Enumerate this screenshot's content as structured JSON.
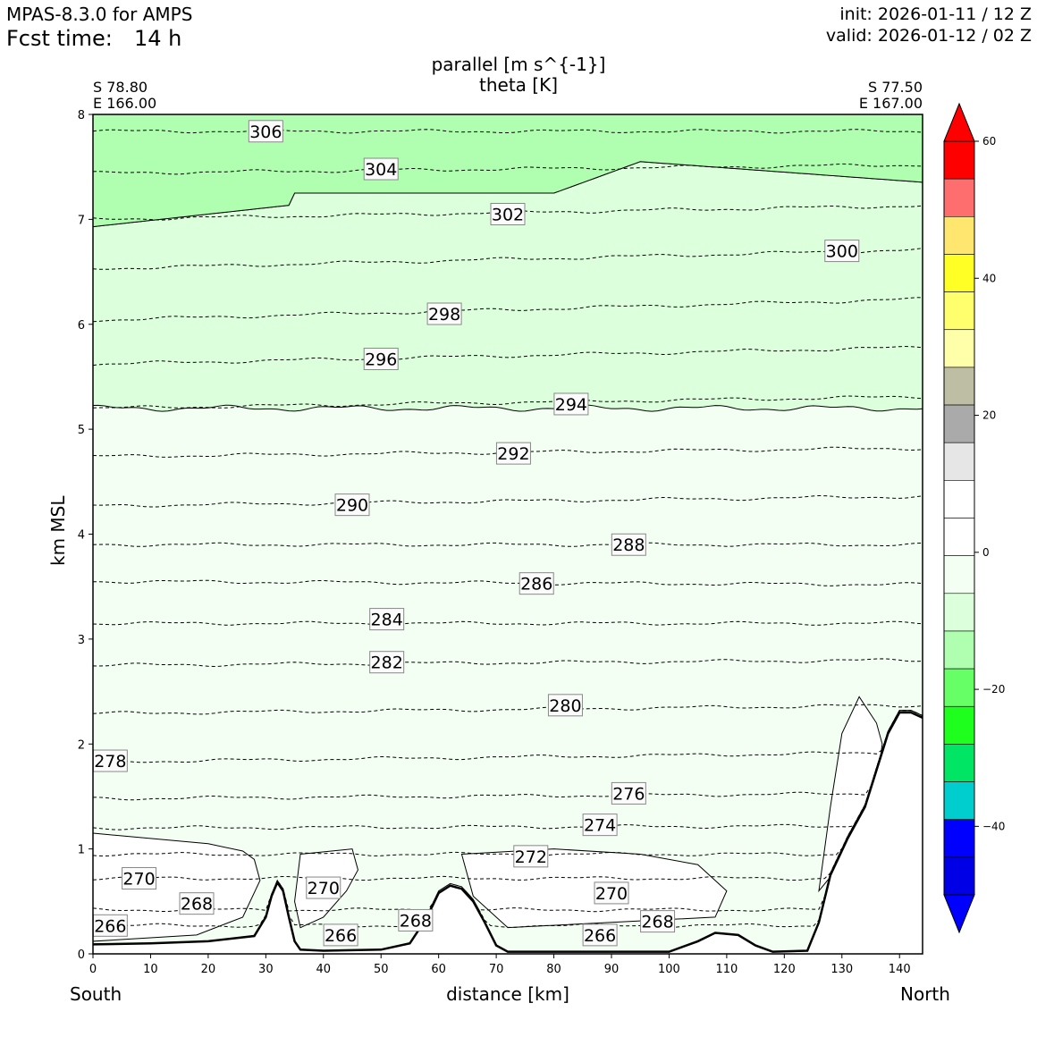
{
  "header": {
    "model": "MPAS-8.3.0 for AMPS",
    "fcst_label": "Fcst time:",
    "fcst_value": "14 h",
    "init": "init: 2026-01-11 / 12 Z",
    "valid": "valid: 2026-01-12 / 02 Z"
  },
  "chart_data": {
    "type": "contour",
    "title_line1": "parallel [m s^{-1}]",
    "title_line2": "theta [K]",
    "xlabel": "distance [km]",
    "ylabel": "km MSL",
    "xlim": [
      0,
      144
    ],
    "ylim": [
      0,
      8
    ],
    "x_ticks": [
      0,
      10,
      20,
      30,
      40,
      50,
      60,
      70,
      80,
      90,
      100,
      110,
      120,
      130,
      140
    ],
    "y_ticks": [
      0,
      1,
      2,
      3,
      4,
      5,
      6,
      7,
      8
    ],
    "left_end": {
      "lat": "S 78.80",
      "lon": "E 166.00",
      "side": "South"
    },
    "right_end": {
      "lat": "S 77.50",
      "lon": "E 167.00",
      "side": "North"
    },
    "colorbar": {
      "range": [
        -50,
        60
      ],
      "step": 5,
      "ticks": [
        60,
        40,
        20,
        0,
        -20,
        -40
      ],
      "tick_labels": [
        "60",
        "40",
        "20",
        "0",
        "−20",
        "−40"
      ],
      "colors_top_to_bottom": [
        "#ff0000",
        "#ff6e6e",
        "#ffe66e",
        "#ffff26",
        "#ffff6e",
        "#ffffaa",
        "#bebea5",
        "#aaaaaa",
        "#e6e6e6",
        "#ffffff",
        "#ffffff",
        "#f2fff2",
        "#dcffdc",
        "#b0ffb0",
        "#66ff66",
        "#1eff1e",
        "#00e664",
        "#00cdcd",
        "#0000ff",
        "#0000e6"
      ],
      "extend_max_color": "#ff0000",
      "extend_min_color": "#0000ff"
    },
    "filled_regions": [
      {
        "range": "-10 to -15",
        "color": "#b0ffb0",
        "extent": "above ~7.0-7.5 km"
      },
      {
        "range": "-5 to -10",
        "color": "#dcffdc",
        "extent": "~5.2 to ~7.3 km"
      },
      {
        "range": "0 to -5",
        "color": "#f2fff2",
        "extent": "surface to ~5.2 km"
      }
    ],
    "theta_contours": [
      {
        "value": 306,
        "label": "306",
        "y_left": 7.84,
        "y_right": 7.84,
        "label_x": 30,
        "label_y": 7.84
      },
      {
        "value": 304,
        "label": "304",
        "y_left": 7.44,
        "y_right": 7.52,
        "label_x": 50,
        "label_y": 7.48
      },
      {
        "value": 302,
        "label": "302",
        "y_left": 7.0,
        "y_right": 7.13,
        "label_x": 72,
        "label_y": 7.05
      },
      {
        "value": 300,
        "label": "300",
        "y_left": 6.53,
        "y_right": 6.71,
        "label_x": 130,
        "label_y": 6.7
      },
      {
        "value": 298,
        "label": "298",
        "y_left": 6.04,
        "y_right": 6.24,
        "label_x": 61,
        "label_y": 6.1
      },
      {
        "value": 296,
        "label": "296",
        "y_left": 5.62,
        "y_right": 5.78,
        "label_x": 50,
        "label_y": 5.67
      },
      {
        "value": 294,
        "label": "294",
        "y_left": 5.2,
        "y_right": 5.31,
        "label_x": 83,
        "label_y": 5.24
      },
      {
        "value": 292,
        "label": "292",
        "y_left": 4.74,
        "y_right": 4.82,
        "label_x": 73,
        "label_y": 4.77
      },
      {
        "value": 290,
        "label": "290",
        "y_left": 4.27,
        "y_right": 4.36,
        "label_x": 45,
        "label_y": 4.28
      },
      {
        "value": 288,
        "label": "288",
        "y_left": 3.9,
        "y_right": 3.9,
        "label_x": 93,
        "label_y": 3.9
      },
      {
        "value": 286,
        "label": "286",
        "y_left": 3.55,
        "y_right": 3.52,
        "label_x": 77,
        "label_y": 3.53
      },
      {
        "value": 284,
        "label": "284",
        "y_left": 3.15,
        "y_right": 3.15,
        "label_x": 51,
        "label_y": 3.19
      },
      {
        "value": 282,
        "label": "282",
        "y_left": 2.75,
        "y_right": 2.8,
        "label_x": 51,
        "label_y": 2.78
      },
      {
        "value": 280,
        "label": "280",
        "y_left": 2.29,
        "y_right": 2.37,
        "label_x": 82,
        "label_y": 2.37
      },
      {
        "value": 278,
        "label": "278",
        "y_left": 1.83,
        "y_right": 1.92,
        "label_x": 3,
        "label_y": 1.84
      },
      {
        "value": 276,
        "label": "276",
        "y_left": 1.48,
        "y_right": 1.53,
        "label_x": 93,
        "label_y": 1.53
      },
      {
        "value": 274,
        "label": "274",
        "y_left": 1.2,
        "y_right": 1.22,
        "label_x": 88,
        "label_y": 1.23
      },
      {
        "value": 272,
        "label": "272",
        "y_left": 0.95,
        "y_right": 0.95,
        "label_x": 76,
        "label_y": 0.93
      },
      {
        "value": 270,
        "label": "270",
        "y_left": 0.72,
        "y_right": 0.72,
        "label_x": 8,
        "label_y": 0.72
      },
      {
        "value": 270,
        "label": "270",
        "y_left": 0.62,
        "y_right": 0.62,
        "label_x": 40,
        "label_y": 0.63
      },
      {
        "value": 270,
        "label": "270",
        "y_left": 0.58,
        "y_right": 0.58,
        "label_x": 90,
        "label_y": 0.58
      },
      {
        "value": 268,
        "label": "268",
        "y_left": 0.42,
        "y_right": 0.42,
        "label_x": 18,
        "label_y": 0.48
      },
      {
        "value": 268,
        "label": "268",
        "y_left": 0.32,
        "y_right": 0.32,
        "label_x": 56,
        "label_y": 0.32
      },
      {
        "value": 268,
        "label": "268",
        "y_left": 0.31,
        "y_right": 0.31,
        "label_x": 98,
        "label_y": 0.31
      },
      {
        "value": 266,
        "label": "266",
        "y_left": 0.27,
        "y_right": 0.27,
        "label_x": 3,
        "label_y": 0.27
      },
      {
        "value": 266,
        "label": "266",
        "y_left": 0.18,
        "y_right": 0.18,
        "label_x": 43,
        "label_y": 0.18
      },
      {
        "value": 266,
        "label": "266",
        "y_left": 0.18,
        "y_right": 0.18,
        "label_x": 88,
        "label_y": 0.18
      }
    ],
    "terrain": [
      [
        0,
        0.09
      ],
      [
        10,
        0.1
      ],
      [
        20,
        0.12
      ],
      [
        28,
        0.17
      ],
      [
        30,
        0.35
      ],
      [
        31,
        0.55
      ],
      [
        32,
        0.68
      ],
      [
        33,
        0.6
      ],
      [
        34,
        0.35
      ],
      [
        35,
        0.12
      ],
      [
        36,
        0.04
      ],
      [
        40,
        0.03
      ],
      [
        50,
        0.04
      ],
      [
        55,
        0.1
      ],
      [
        58,
        0.35
      ],
      [
        60,
        0.58
      ],
      [
        62,
        0.65
      ],
      [
        64,
        0.62
      ],
      [
        66,
        0.5
      ],
      [
        68,
        0.3
      ],
      [
        70,
        0.08
      ],
      [
        72,
        0.02
      ],
      [
        100,
        0.02
      ],
      [
        105,
        0.12
      ],
      [
        108,
        0.2
      ],
      [
        112,
        0.18
      ],
      [
        115,
        0.08
      ],
      [
        118,
        0.02
      ],
      [
        124,
        0.03
      ],
      [
        126,
        0.3
      ],
      [
        128,
        0.75
      ],
      [
        131,
        1.1
      ],
      [
        134,
        1.4
      ],
      [
        136,
        1.75
      ],
      [
        138,
        2.1
      ],
      [
        140,
        2.3
      ],
      [
        142,
        2.3
      ],
      [
        144,
        2.25
      ]
    ]
  }
}
